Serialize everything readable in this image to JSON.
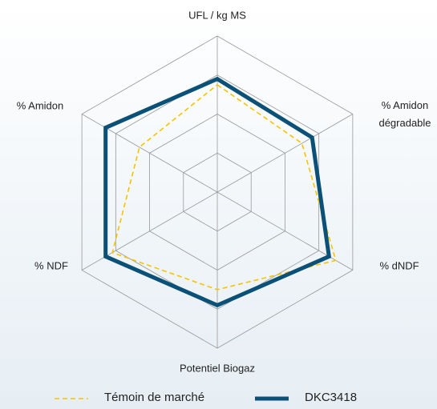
{
  "chart_data": {
    "type": "radar",
    "categories": [
      "UFL / kg MS",
      "% Amidon dégradable",
      "% dNDF",
      "Potentiel Biogaz",
      "% NDF",
      "% Amidon"
    ],
    "series": [
      {
        "name": "Témoin de marché",
        "color": "#f5c400",
        "dashed": true,
        "values": [
          2.75,
          2.5,
          3.5,
          2.5,
          3.1,
          2.3
        ]
      },
      {
        "name": "DKC3418",
        "color": "#0b5177",
        "dashed": false,
        "values": [
          2.9,
          2.8,
          3.3,
          2.9,
          3.3,
          3.3
        ]
      }
    ],
    "rlim": [
      0,
      4
    ],
    "rticks": [
      1,
      2,
      3,
      4
    ],
    "grid": true,
    "legend": "bottom"
  }
}
